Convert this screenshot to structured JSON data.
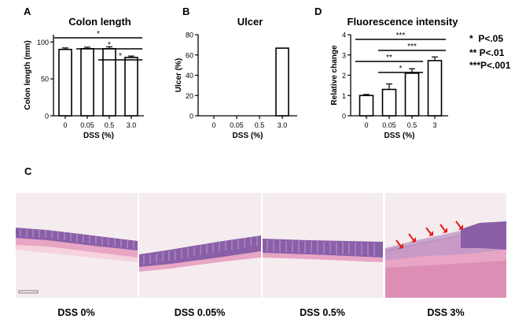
{
  "panels": {
    "a": "A",
    "b": "B",
    "c": "C",
    "d": "D"
  },
  "colors": {
    "arrow": "#e31a1c",
    "tissue_dark": "#8a5fa8",
    "tissue_pink": "#e8a6c4",
    "bg": "#f4ecee"
  },
  "chart_data": [
    {
      "type": "bar",
      "title": "Colon length",
      "categories": [
        "0",
        "0.05",
        "0.5",
        "3.0"
      ],
      "values": [
        90,
        91,
        91,
        79
      ],
      "errors": [
        2,
        2,
        2.5,
        2
      ],
      "xlabel": "DSS (%)",
      "ylabel": "Colon length  (mm)",
      "ylim": [
        0,
        110
      ],
      "yticks": [
        "0",
        "50",
        "100"
      ],
      "significance": [
        {
          "from": "0",
          "to": "3.0",
          "label": "*"
        },
        {
          "from": "0.05",
          "to": "3.0",
          "label": "*"
        },
        {
          "from": "0.5",
          "to": "3.0",
          "label": "*"
        }
      ]
    },
    {
      "type": "bar",
      "title": "Ulcer",
      "categories": [
        "0",
        "0.05",
        "0.5",
        "3.0"
      ],
      "values": [
        0,
        0,
        0,
        66.7
      ],
      "errors": [
        0,
        0,
        0,
        0
      ],
      "xlabel": "DSS (%)",
      "ylabel": "Ulcer (%)",
      "ylim": [
        0,
        80
      ],
      "yticks": [
        "0",
        "20",
        "40",
        "60",
        "80"
      ],
      "significance": []
    },
    {
      "type": "bar",
      "title": "Fluorescence intensity",
      "categories": [
        "0",
        "0.05",
        "0.5",
        "3"
      ],
      "values": [
        1.0,
        1.3,
        2.1,
        2.72
      ],
      "errors": [
        0.05,
        0.27,
        0.22,
        0.18
      ],
      "xlabel": "DSS (%)",
      "ylabel": "Relative change",
      "ylim": [
        0,
        4
      ],
      "yticks": [
        "0",
        "1",
        "2",
        "3",
        "4"
      ],
      "significance": [
        {
          "from": "0",
          "to": "3",
          "label": "***"
        },
        {
          "from": "0.05",
          "to": "3",
          "label": "***"
        },
        {
          "from": "0",
          "to": "0.5",
          "label": "**"
        },
        {
          "from": "0.05",
          "to": "0.5",
          "label": "*"
        }
      ]
    }
  ],
  "legend": {
    "line1": "*  P<.05",
    "line2": "** P<.01",
    "line3": "***P<.001"
  },
  "histology": [
    {
      "label": "DSS 0%"
    },
    {
      "label": "DSS 0.05%"
    },
    {
      "label": "DSS 0.5%"
    },
    {
      "label": "DSS 3%"
    }
  ]
}
